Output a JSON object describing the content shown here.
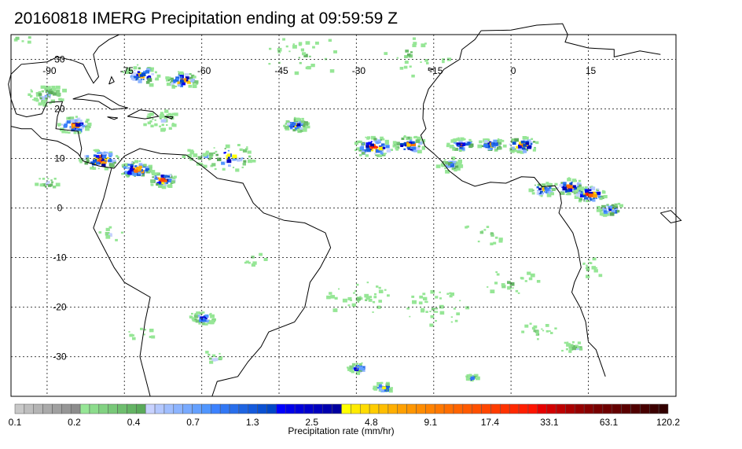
{
  "title": "20160818 IMERG Precipitation ending at 09:59:59 Z",
  "map": {
    "lon_range": [
      -97,
      32
    ],
    "lat_range": [
      -38,
      35
    ],
    "lon_labels": [
      "-90",
      "-75",
      "-60",
      "-45",
      "-30",
      "-15",
      "0",
      "15"
    ],
    "lon_values": [
      -90,
      -75,
      -60,
      -45,
      -30,
      -15,
      0,
      15
    ],
    "lat_labels": [
      "30",
      "20",
      "10",
      "0",
      "-10",
      "-20",
      "-30"
    ],
    "lat_values": [
      30,
      20,
      10,
      0,
      -10,
      -20,
      -30
    ],
    "grid": true
  },
  "colorbar": {
    "label": "Precipitation rate (mm/hr)",
    "tick_labels": [
      "0.1",
      "0.2",
      "0.4",
      "0.7",
      "1.3",
      "2.5",
      "4.8",
      "9.1",
      "17.4",
      "33.1",
      "63.1",
      "120.2"
    ],
    "colors": [
      "#c8c8c8",
      "#bebebe",
      "#b4b4b4",
      "#aaaaaa",
      "#a0a0a0",
      "#969696",
      "#8c8c8c",
      "#96e696",
      "#8cdc8c",
      "#82d282",
      "#78c878",
      "#6ebe6e",
      "#64b464",
      "#5aaa5a",
      "#c8d2ff",
      "#b4c8ff",
      "#a0beff",
      "#8cb4ff",
      "#78aaff",
      "#64a0ff",
      "#5096ff",
      "#3c82ff",
      "#3278f5",
      "#286eeb",
      "#1e64e1",
      "#145adc",
      "#0a50d2",
      "#0046c8",
      "#0000ff",
      "#0000eb",
      "#0000dc",
      "#0000cd",
      "#0000be",
      "#0000af",
      "#0000a0",
      "#ffff00",
      "#ffeb00",
      "#ffdc00",
      "#ffcd00",
      "#ffbe00",
      "#ffaf00",
      "#ffa000",
      "#ff9600",
      "#ff8c00",
      "#ff8200",
      "#ff7800",
      "#ff6e00",
      "#ff6400",
      "#ff5a00",
      "#ff5000",
      "#ff4600",
      "#ff3c00",
      "#ff3200",
      "#ff2800",
      "#ff1e00",
      "#ff1400",
      "#e60000",
      "#d20000",
      "#be0000",
      "#aa0000",
      "#960000",
      "#870000",
      "#780000",
      "#6e0000",
      "#640000",
      "#5a0000",
      "#500000",
      "#460000",
      "#3c0000",
      "#320000"
    ]
  }
}
